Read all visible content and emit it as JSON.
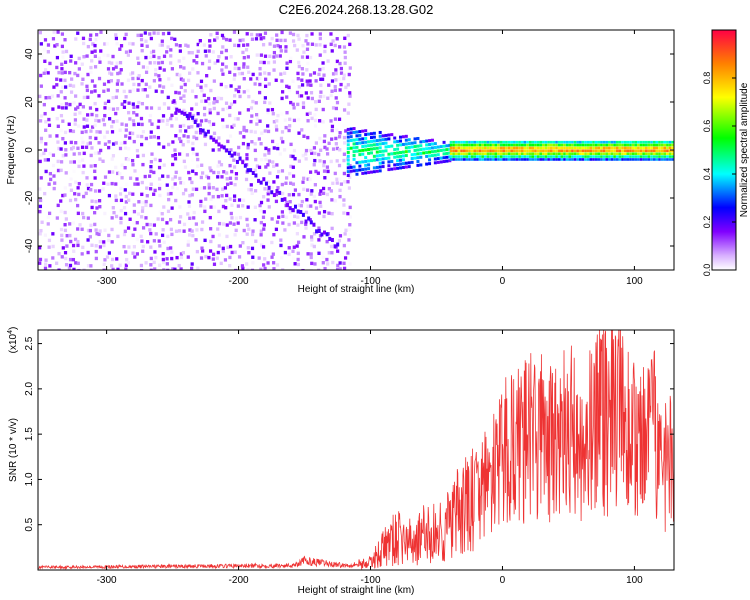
{
  "page": {
    "title": "C2E6.2024.268.13.28.G02"
  },
  "chart_data": [
    {
      "type": "heatmap",
      "title": "C2E6.2024.268.13.28.G02",
      "xlabel": "Height of straight line (km)",
      "ylabel": "Frequency (Hz)",
      "xlim": [
        -352,
        130
      ],
      "ylim": [
        -50,
        50
      ],
      "x_ticks": [
        -300,
        -200,
        -100,
        0,
        100
      ],
      "y_ticks": [
        -40,
        -20,
        0,
        20,
        40
      ],
      "grid": false,
      "colorbar": {
        "label": "Normalized spectral amplitude",
        "range": [
          0,
          1
        ],
        "ticks": [
          0.0,
          0.2,
          0.4,
          0.6,
          0.8
        ],
        "colormap": "rainbow (violet to red)"
      },
      "description_regions": [
        {
          "x_range": [
            -352,
            -118
          ],
          "freq_range": [
            -50,
            50
          ],
          "amplitude": [
            0.0,
            0.15
          ]
        },
        {
          "x_range": [
            -118,
            -40
          ],
          "freq_range": [
            -10,
            10
          ],
          "amplitude": [
            0.2,
            0.5
          ]
        },
        {
          "x_range": [
            -40,
            130
          ],
          "freq_range": [
            -3,
            3
          ],
          "amplitude": [
            0.4,
            0.95
          ]
        }
      ]
    },
    {
      "type": "line",
      "xlabel": "Height of straight line (km)",
      "ylabel": "SNR (10 * v/v)",
      "multiplier_label": "(x10",
      "multiplier_exp": "4",
      "xlim": [
        -352,
        130
      ],
      "ylim": [
        0,
        26500
      ],
      "x_ticks": [
        -300,
        -200,
        -100,
        0,
        100
      ],
      "y_ticks": [
        5000,
        10000,
        15000,
        20000,
        25000
      ],
      "y_tick_labels": [
        "0.5",
        "1.0",
        "1.5",
        "2.0",
        "2.5"
      ],
      "grid": false,
      "series": [
        {
          "color": "#ee3333",
          "x": [
            -352,
            -300,
            -250,
            -200,
            -160,
            -150,
            -120,
            -100,
            -90,
            -80,
            -70,
            -60,
            -50,
            -40,
            -30,
            -20,
            -10,
            0,
            5,
            10,
            20,
            30,
            40,
            50,
            60,
            70,
            78,
            85,
            90,
            100,
            110,
            115,
            120,
            125,
            130
          ],
          "y": [
            300,
            350,
            400,
            450,
            500,
            1000,
            500,
            800,
            2500,
            3500,
            3000,
            3800,
            4000,
            5000,
            6500,
            8000,
            10000,
            12000,
            14000,
            13500,
            14500,
            15000,
            13500,
            15500,
            14000,
            16000,
            17000,
            16000,
            17500,
            14000,
            13500,
            15000,
            11000,
            12500,
            15500
          ]
        }
      ]
    }
  ]
}
